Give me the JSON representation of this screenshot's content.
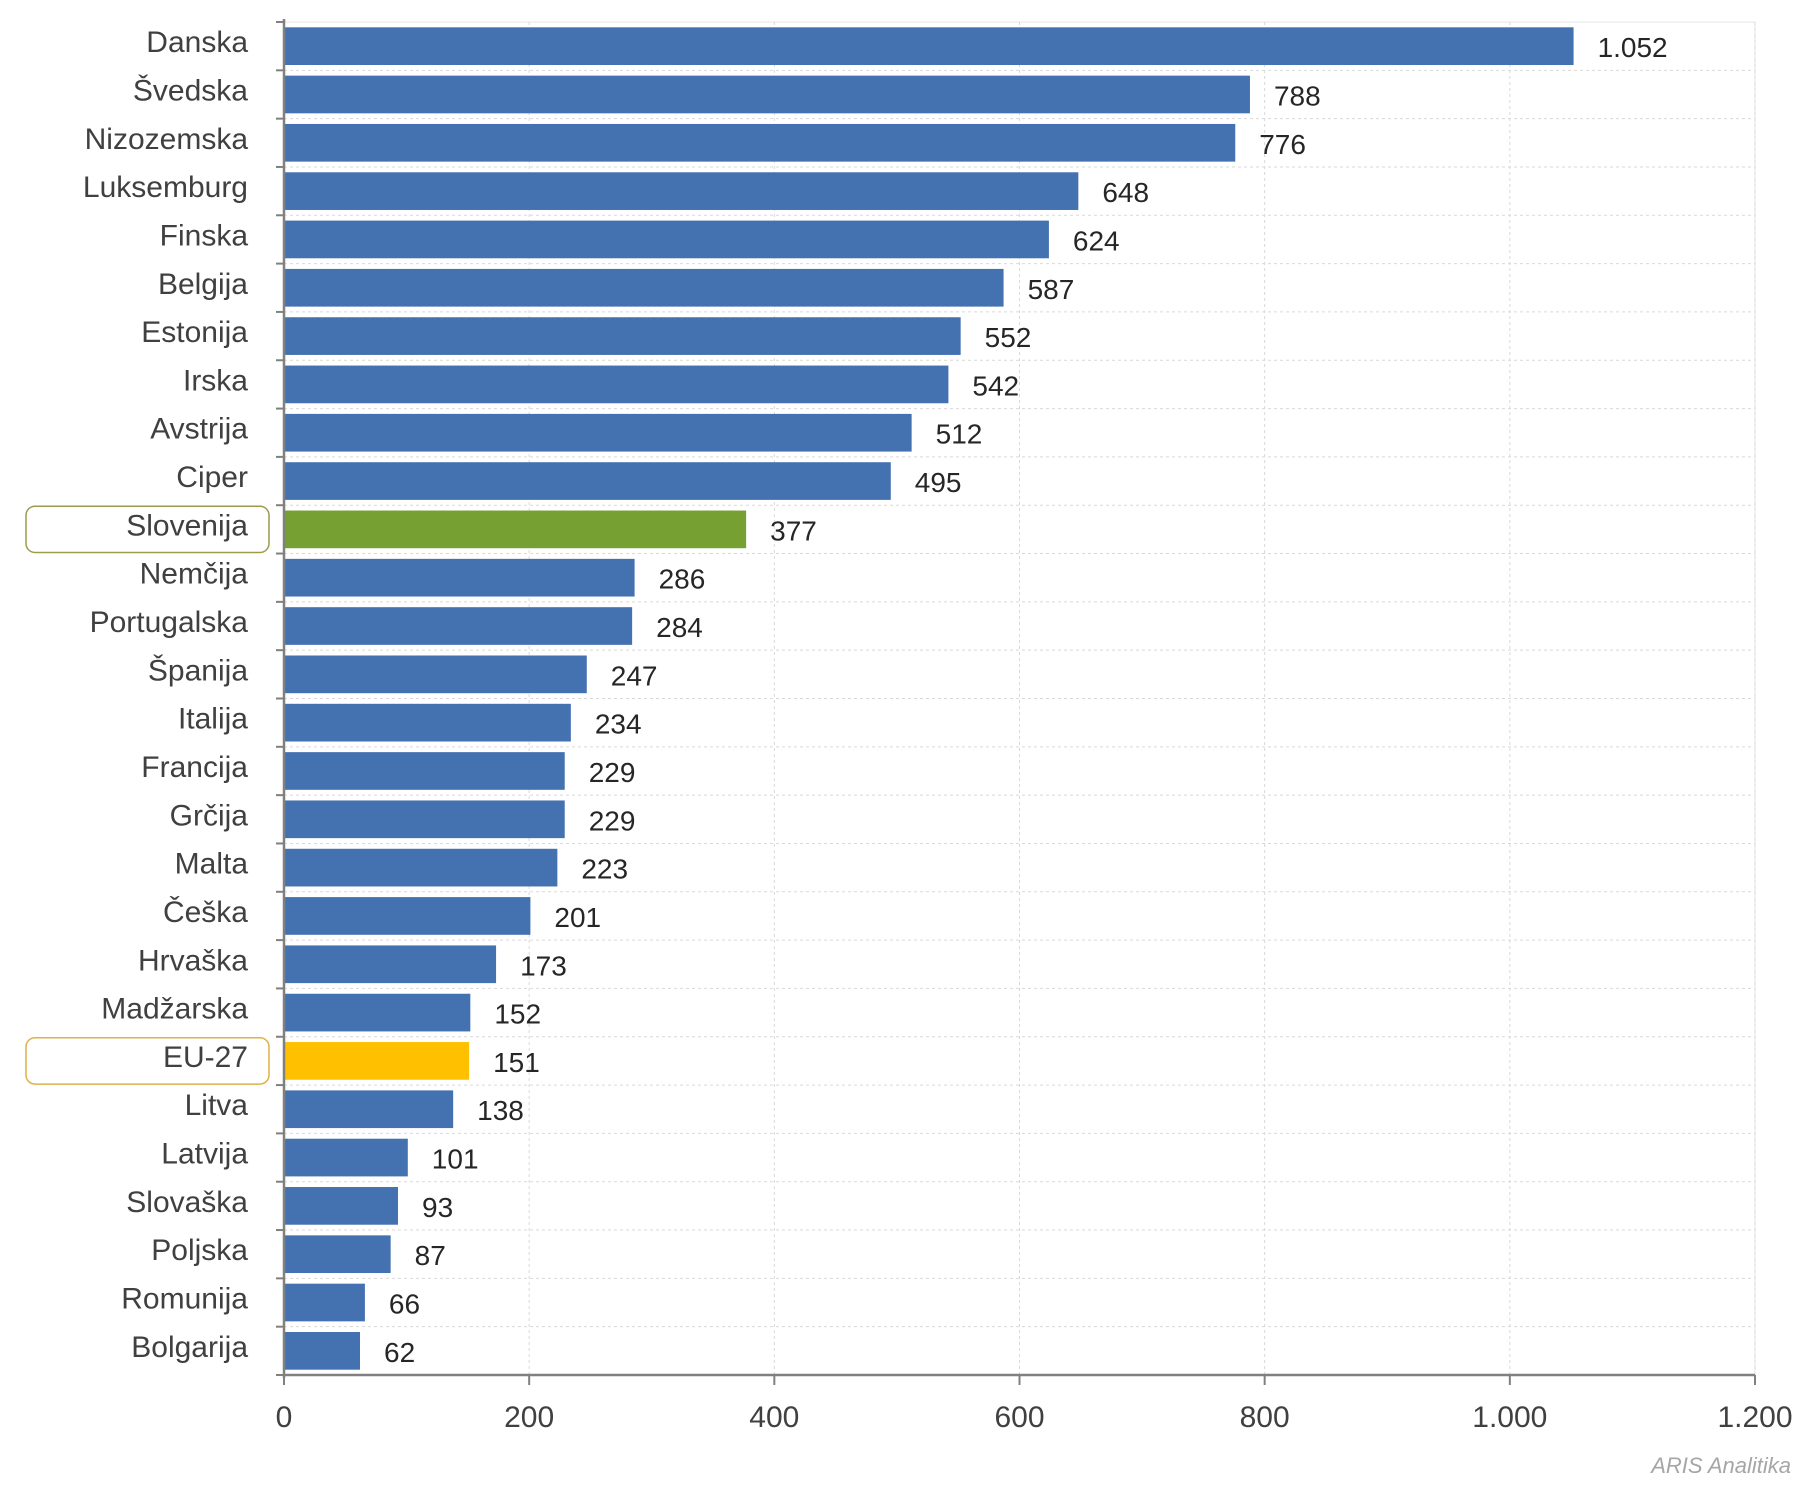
{
  "chart_data": {
    "type": "bar",
    "orientation": "horizontal",
    "categories": [
      "Danska",
      "Švedska",
      "Nizozemska",
      "Luksemburg",
      "Finska",
      "Belgija",
      "Estonija",
      "Irska",
      "Avstrija",
      "Ciper",
      "Slovenija",
      "Nemčija",
      "Portugalska",
      "Španija",
      "Italija",
      "Francija",
      "Grčija",
      "Malta",
      "Češka",
      "Hrvaška",
      "Madžarska",
      "EU-27",
      "Litva",
      "Latvija",
      "Slovaška",
      "Poljska",
      "Romunija",
      "Bolgarija"
    ],
    "values": [
      1052,
      788,
      776,
      648,
      624,
      587,
      552,
      542,
      512,
      495,
      377,
      286,
      284,
      247,
      234,
      229,
      229,
      223,
      201,
      173,
      152,
      151,
      138,
      101,
      93,
      87,
      66,
      62
    ],
    "value_labels": [
      "1.052",
      "788",
      "776",
      "648",
      "624",
      "587",
      "552",
      "542",
      "512",
      "495",
      "377",
      "286",
      "284",
      "247",
      "234",
      "229",
      "229",
      "223",
      "201",
      "173",
      "152",
      "151",
      "138",
      "101",
      "93",
      "87",
      "66",
      "62"
    ],
    "xlim": [
      0,
      1200
    ],
    "xticks": [
      0,
      200,
      400,
      600,
      800,
      1000,
      1200
    ],
    "xtick_labels": [
      "0",
      "200",
      "400",
      "600",
      "800",
      "1.000",
      "1.200"
    ],
    "grid": true,
    "colors": {
      "default": "#4472b0",
      "highlight": {
        "Slovenija": "#77a033",
        "EU-27": "#ffc000"
      },
      "highlight_box": {
        "Slovenija": "#9c9c4a",
        "EU-27": "#e0b04a"
      }
    },
    "title": "",
    "xlabel": "",
    "ylabel": ""
  },
  "credit": "ARIS Analitika"
}
